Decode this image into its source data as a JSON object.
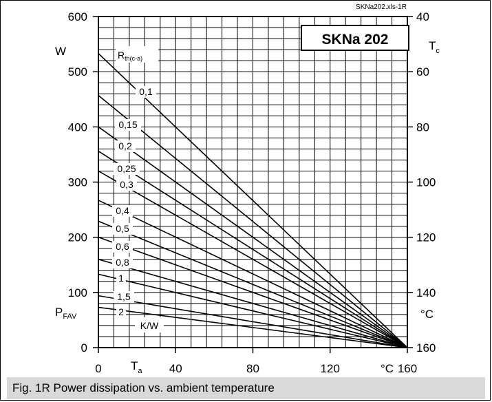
{
  "caption": "Fig. 1R Power dissipation vs. ambient temperature",
  "chart_data": {
    "type": "line",
    "title": "SKNa 202",
    "source_tag": "SKNa202.xls-1R",
    "left_axis": {
      "label_main": "W",
      "label_bottom_main": "P",
      "label_bottom_sub": "FAV",
      "ylim": [
        0,
        600
      ],
      "ticks": [
        0,
        100,
        200,
        300,
        400,
        500,
        600
      ]
    },
    "right_axis": {
      "label_main": "T",
      "label_sub": "c",
      "unit": "°C",
      "range": [
        40,
        160
      ],
      "ticks": [
        40,
        60,
        80,
        100,
        120,
        140,
        160
      ]
    },
    "x_axis": {
      "label_main": "T",
      "label_sub": "a",
      "unit": "°C",
      "xlim": [
        0,
        160
      ],
      "ticks": [
        0,
        40,
        80,
        120,
        160
      ]
    },
    "curves_label_main": "R",
    "curves_label_sub": "th(c-a)",
    "curves_unit": "K/W",
    "grid": true,
    "series": [
      {
        "name": "0,1",
        "values": [
          [
            0,
            533
          ],
          [
            160,
            0
          ]
        ]
      },
      {
        "name": "0,15",
        "values": [
          [
            0,
            457
          ],
          [
            160,
            0
          ]
        ]
      },
      {
        "name": "0,2",
        "values": [
          [
            0,
            400
          ],
          [
            160,
            0
          ]
        ]
      },
      {
        "name": "0,25",
        "values": [
          [
            0,
            356
          ],
          [
            160,
            0
          ]
        ]
      },
      {
        "name": "0,3",
        "values": [
          [
            0,
            320
          ],
          [
            160,
            0
          ]
        ]
      },
      {
        "name": "0,4",
        "values": [
          [
            0,
            267
          ],
          [
            160,
            0
          ]
        ]
      },
      {
        "name": "0,5",
        "values": [
          [
            0,
            229
          ],
          [
            160,
            0
          ]
        ]
      },
      {
        "name": "0,6",
        "values": [
          [
            0,
            200
          ],
          [
            160,
            0
          ]
        ]
      },
      {
        "name": "0,8",
        "values": [
          [
            0,
            160
          ],
          [
            160,
            0
          ]
        ]
      },
      {
        "name": "1",
        "values": [
          [
            0,
            133
          ],
          [
            160,
            0
          ]
        ]
      },
      {
        "name": "1,5",
        "values": [
          [
            0,
            94
          ],
          [
            160,
            0
          ]
        ]
      },
      {
        "name": "2",
        "values": [
          [
            0,
            73
          ],
          [
            160,
            0
          ]
        ]
      }
    ]
  }
}
